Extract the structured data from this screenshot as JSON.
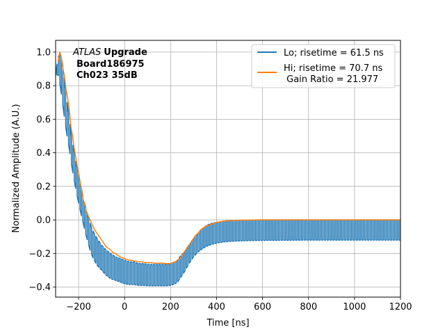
{
  "chart_data": {
    "type": "line",
    "title": "",
    "xlabel": "Time [ns]",
    "ylabel": "Normalized Amplitude (A.U.)",
    "xlim": [
      -300,
      1200
    ],
    "ylim": [
      -0.46,
      1.07
    ],
    "xticks": [
      -200,
      0,
      200,
      400,
      600,
      800,
      1000,
      1200
    ],
    "xtick_labels": [
      "−200",
      "0",
      "200",
      "400",
      "600",
      "800",
      "1000",
      "1200"
    ],
    "yticks": [
      -0.4,
      -0.2,
      0.0,
      0.2,
      0.4,
      0.6,
      0.8,
      1.0
    ],
    "ytick_labels": [
      "−0.4",
      "−0.2",
      "0.0",
      "0.2",
      "0.4",
      "0.6",
      "0.8",
      "1.0"
    ],
    "grid": true,
    "legend_position": "top-right",
    "annotation": {
      "experiment": "ATLAS",
      "status": "Upgrade",
      "line2": "Board186975",
      "line3": "Ch023 35dB"
    },
    "series": [
      {
        "name": "Lo; risetime = 61.5 ns",
        "color": "#1f77b4",
        "style": "oscillating",
        "period_ns": 12.5,
        "envelope_upper": {
          "x": [
            -300,
            -290,
            -280,
            -270,
            -260,
            -250,
            -240,
            -230,
            -220,
            -210,
            -200,
            -190,
            -180,
            -170,
            -160,
            -150,
            -140,
            -120,
            -100,
            -80,
            -60,
            -40,
            -20,
            0,
            20,
            40,
            60,
            80,
            100,
            120,
            140,
            160,
            180,
            200,
            210,
            220,
            230,
            240,
            260,
            280,
            300,
            320,
            340,
            360,
            380,
            400,
            420,
            440,
            460,
            480,
            500,
            550,
            600,
            700,
            800,
            900,
            1000,
            1100,
            1200
          ],
          "y": [
            0.86,
            0.97,
            0.99,
            0.93,
            0.82,
            0.7,
            0.6,
            0.48,
            0.41,
            0.33,
            0.27,
            0.2,
            0.13,
            0.08,
            0.03,
            -0.02,
            -0.06,
            -0.11,
            -0.15,
            -0.18,
            -0.2,
            -0.22,
            -0.23,
            -0.24,
            -0.25,
            -0.25,
            -0.26,
            -0.26,
            -0.265,
            -0.265,
            -0.265,
            -0.265,
            -0.265,
            -0.26,
            -0.255,
            -0.25,
            -0.24,
            -0.22,
            -0.19,
            -0.15,
            -0.11,
            -0.08,
            -0.05,
            -0.03,
            -0.02,
            -0.015,
            -0.01,
            -0.006,
            -0.004,
            -0.003,
            -0.002,
            -0.001,
            0.0,
            0.0,
            0.0,
            0.0,
            0.0,
            0.0,
            0.0
          ]
        },
        "envelope_lower": {
          "x": [
            -300,
            -290,
            -280,
            -270,
            -260,
            -250,
            -240,
            -230,
            -220,
            -210,
            -200,
            -190,
            -180,
            -170,
            -160,
            -150,
            -140,
            -120,
            -100,
            -80,
            -60,
            -40,
            -20,
            0,
            20,
            40,
            60,
            80,
            100,
            120,
            140,
            160,
            180,
            200,
            210,
            220,
            230,
            240,
            260,
            280,
            300,
            320,
            340,
            360,
            380,
            400,
            420,
            440,
            460,
            480,
            500,
            550,
            600,
            700,
            800,
            900,
            1000,
            1100,
            1200
          ],
          "y": [
            0.84,
            0.88,
            0.8,
            0.7,
            0.59,
            0.5,
            0.42,
            0.32,
            0.24,
            0.17,
            0.1,
            0.04,
            -0.02,
            -0.08,
            -0.13,
            -0.18,
            -0.22,
            -0.27,
            -0.3,
            -0.33,
            -0.35,
            -0.36,
            -0.37,
            -0.38,
            -0.385,
            -0.385,
            -0.39,
            -0.39,
            -0.392,
            -0.392,
            -0.392,
            -0.392,
            -0.392,
            -0.39,
            -0.385,
            -0.38,
            -0.37,
            -0.35,
            -0.31,
            -0.26,
            -0.22,
            -0.19,
            -0.17,
            -0.155,
            -0.145,
            -0.138,
            -0.133,
            -0.13,
            -0.128,
            -0.126,
            -0.125,
            -0.123,
            -0.122,
            -0.121,
            -0.12,
            -0.12,
            -0.12,
            -0.12,
            -0.12
          ]
        }
      },
      {
        "name": "Hi; risetime = 70.7 ns\n Gain Ratio = 21.977",
        "color": "#ff7f0e",
        "style": "line",
        "x": [
          -290,
          -282,
          -275,
          -268,
          -262,
          -255,
          -248,
          -240,
          -233,
          -226,
          -220,
          -213,
          -206,
          -200,
          -193,
          -186,
          -180,
          -173,
          -166,
          -160,
          -150,
          -140,
          -130,
          -120,
          -110,
          -100,
          -90,
          -80,
          -70,
          -60,
          -50,
          -40,
          -30,
          -20,
          -10,
          0,
          10,
          20,
          30,
          40,
          50,
          60,
          70,
          80,
          90,
          100,
          110,
          120,
          130,
          140,
          150,
          160,
          170,
          180,
          190,
          200,
          210,
          220,
          230,
          240,
          250,
          260,
          270,
          280,
          290,
          300,
          310,
          320,
          330,
          340,
          350,
          360,
          370,
          380,
          390,
          400,
          410,
          420,
          430,
          440,
          450,
          460,
          480,
          500,
          550,
          600,
          700,
          800,
          900,
          1000,
          1100,
          1200
        ],
        "y": [
          0.94,
          1.0,
          0.97,
          0.9,
          0.86,
          0.78,
          0.73,
          0.65,
          0.55,
          0.5,
          0.43,
          0.38,
          0.32,
          0.28,
          0.22,
          0.18,
          0.12,
          0.09,
          0.05,
          0.03,
          0.0,
          -0.03,
          -0.06,
          -0.08,
          -0.1,
          -0.12,
          -0.14,
          -0.16,
          -0.17,
          -0.18,
          -0.195,
          -0.2,
          -0.21,
          -0.22,
          -0.225,
          -0.23,
          -0.235,
          -0.24,
          -0.24,
          -0.245,
          -0.245,
          -0.25,
          -0.25,
          -0.25,
          -0.255,
          -0.255,
          -0.255,
          -0.255,
          -0.258,
          -0.258,
          -0.258,
          -0.258,
          -0.258,
          -0.26,
          -0.26,
          -0.26,
          -0.255,
          -0.25,
          -0.24,
          -0.23,
          -0.21,
          -0.19,
          -0.17,
          -0.15,
          -0.13,
          -0.11,
          -0.09,
          -0.08,
          -0.06,
          -0.05,
          -0.04,
          -0.035,
          -0.03,
          -0.025,
          -0.02,
          -0.015,
          -0.012,
          -0.01,
          -0.008,
          -0.006,
          -0.005,
          -0.004,
          -0.003,
          -0.002,
          -0.001,
          0.0,
          0.0,
          0.0,
          0.0,
          0.0,
          0.0,
          0.0
        ]
      }
    ]
  }
}
